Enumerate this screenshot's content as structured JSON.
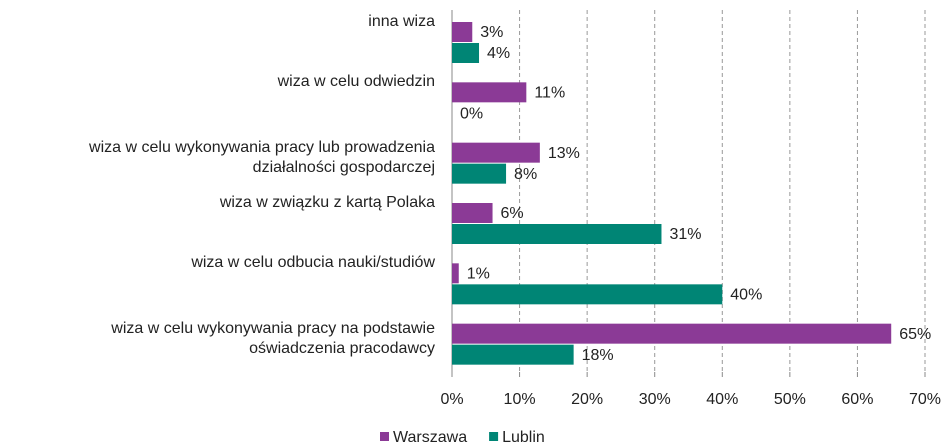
{
  "chart_data": {
    "type": "bar",
    "orientation": "horizontal",
    "categories": [
      "inna wiza",
      "wiza w celu odwiedzin",
      "wiza w celu wykonywania pracy lub prowadzenia\ndziałalności gospodarczej",
      "wiza w związku z kartą Polaka",
      "wiza w celu odbucia nauki/studiów",
      "wiza w celu wykonywania pracy na podstawie\noświadczenia pracodawcy"
    ],
    "series": [
      {
        "name": "Warszawa",
        "color": "#8b3a96",
        "values": [
          3,
          11,
          13,
          6,
          1,
          65
        ],
        "value_labels": [
          "3%",
          "11%",
          "13%",
          "6%",
          "1%",
          "65%"
        ]
      },
      {
        "name": "Lublin",
        "color": "#008575",
        "values": [
          4,
          0,
          8,
          31,
          40,
          18
        ],
        "value_labels": [
          "4%",
          "0%",
          "8%",
          "31%",
          "40%",
          "18%"
        ]
      }
    ],
    "xlim": [
      0,
      70
    ],
    "xticks": [
      {
        "value": 0,
        "label": "0%"
      },
      {
        "value": 10,
        "label": "10%"
      },
      {
        "value": 20,
        "label": "20%"
      },
      {
        "value": 30,
        "label": "30%"
      },
      {
        "value": 40,
        "label": "40%"
      },
      {
        "value": 50,
        "label": "50%"
      },
      {
        "value": 60,
        "label": "60%"
      },
      {
        "value": 70,
        "label": "70%"
      }
    ],
    "grid": true,
    "legend": "bottom"
  }
}
